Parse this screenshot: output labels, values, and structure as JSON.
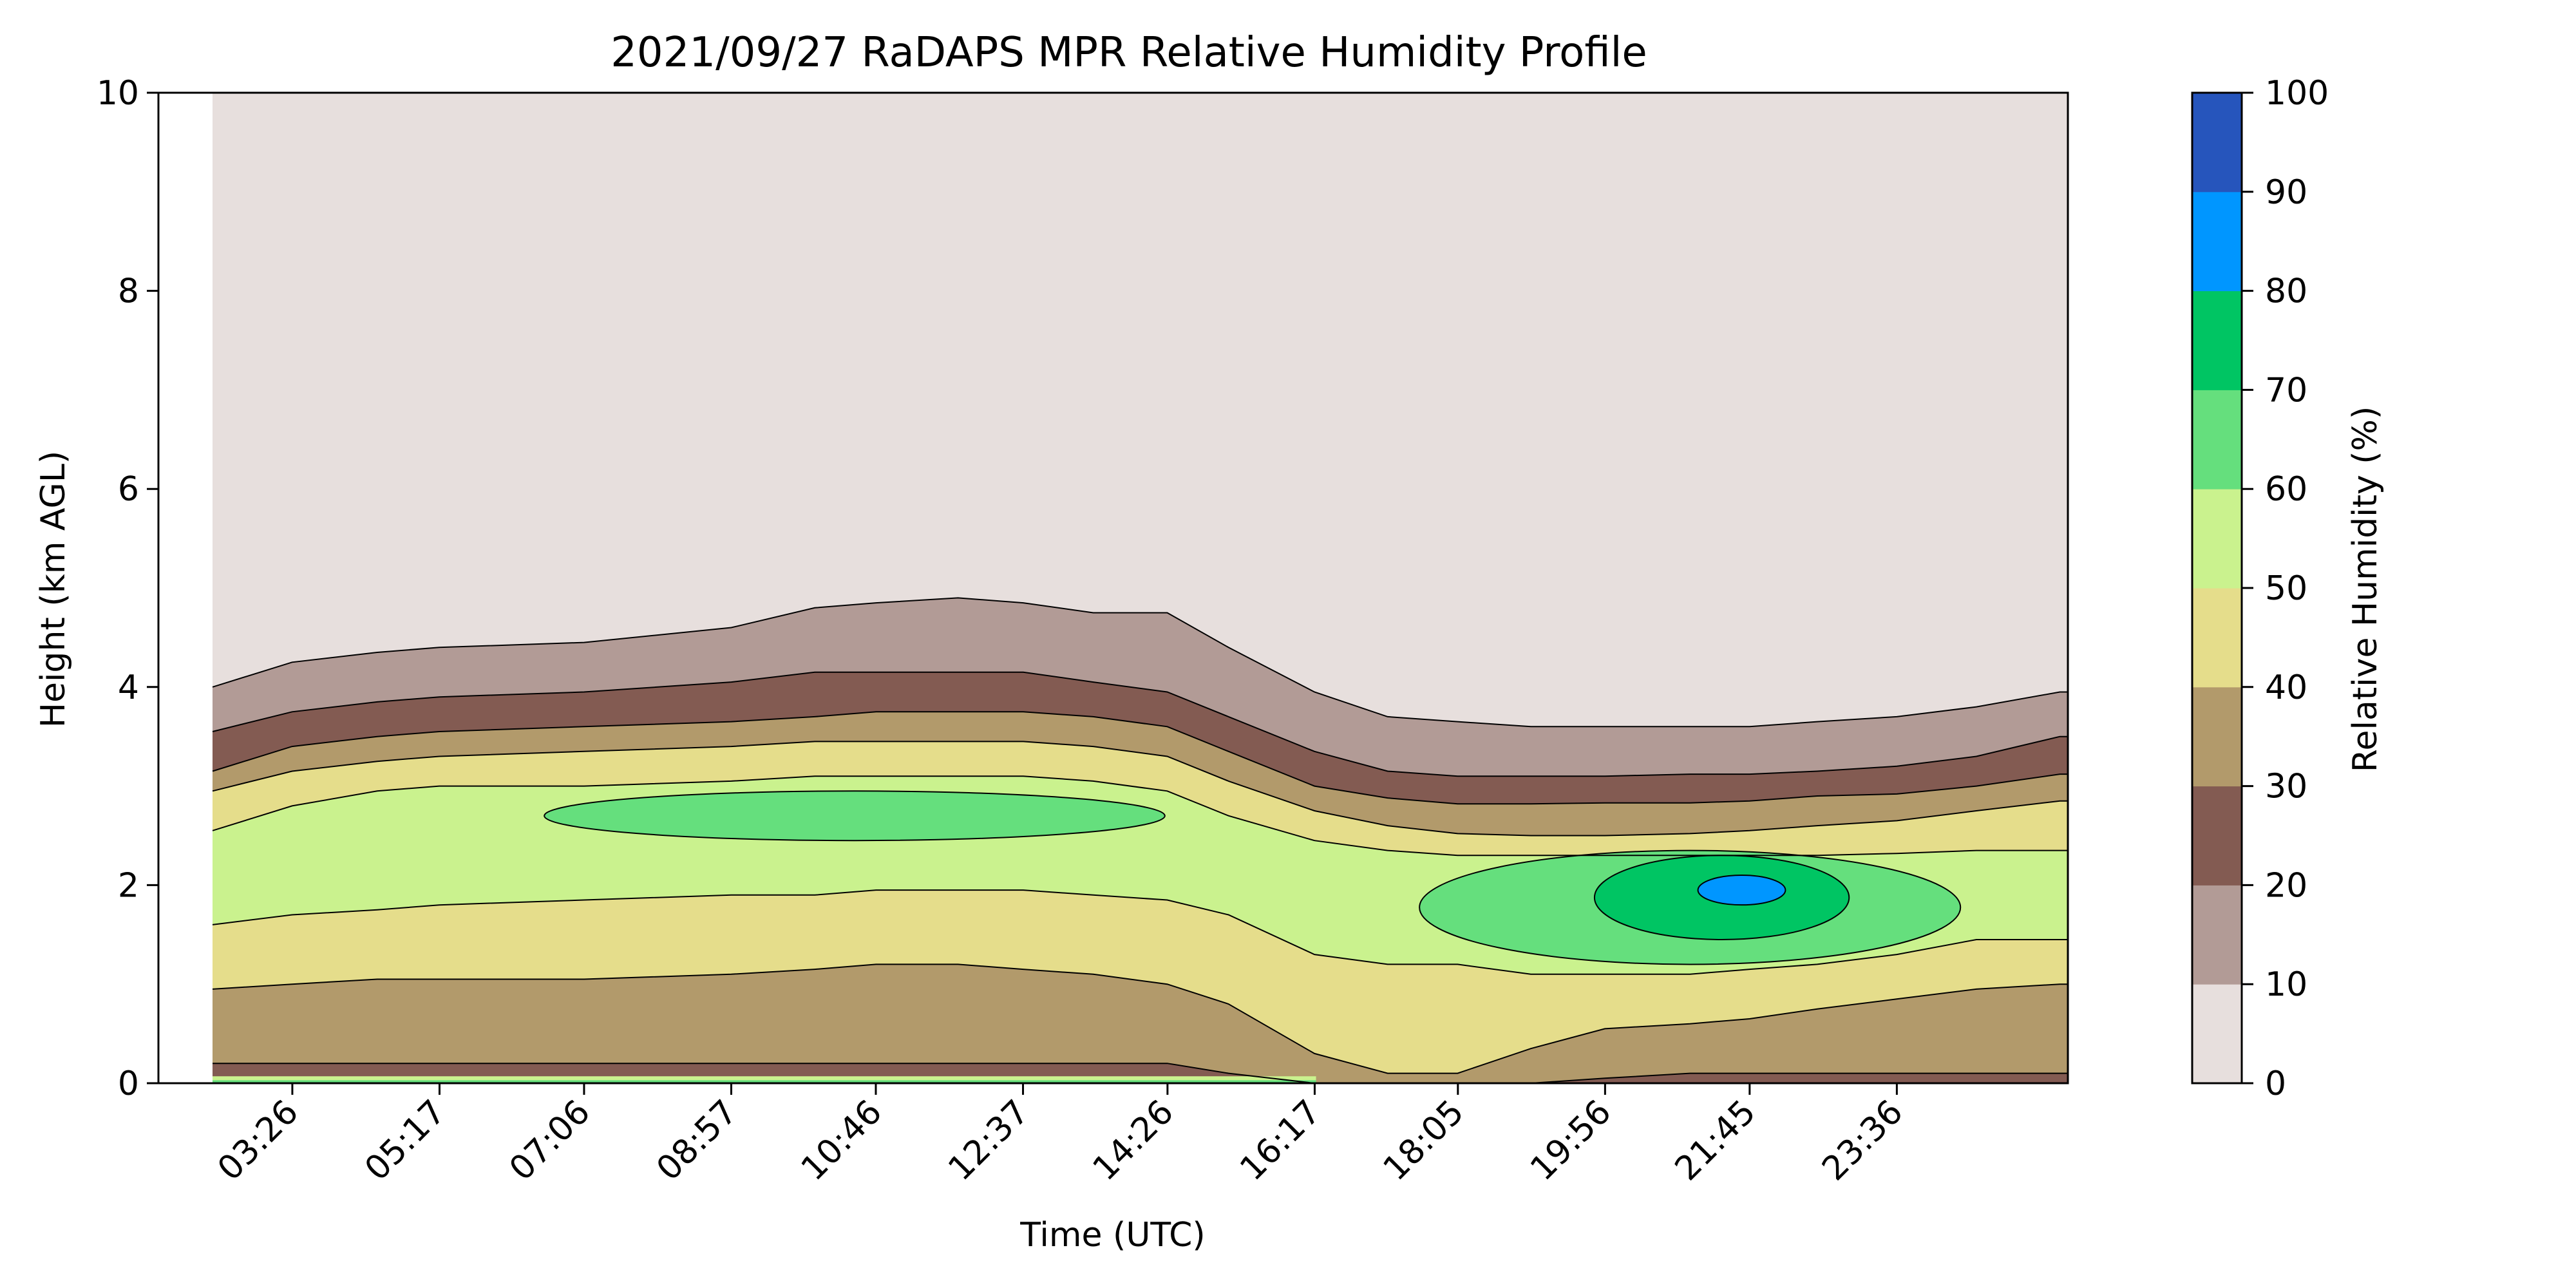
{
  "chart_data": {
    "type": "heatmap",
    "subtype": "filled contour",
    "title": "2021/09/27 RaDAPS MPR Relative Humidity Profile",
    "xlabel": "Time (UTC)",
    "ylabel": "Height (km AGL)",
    "colorbar_label": "Relative Humidity (%)",
    "x_ticks": [
      "03:26",
      "05:17",
      "07:06",
      "08:57",
      "10:46",
      "12:37",
      "14:26",
      "16:17",
      "18:05",
      "19:56",
      "21:45",
      "23:36"
    ],
    "x_range_hours": [
      1.75,
      25.75
    ],
    "x_tick_hours": [
      3.433,
      5.283,
      7.1,
      8.95,
      10.767,
      12.617,
      14.433,
      16.283,
      18.083,
      19.933,
      21.75,
      23.6
    ],
    "data_start_hour": 2.43,
    "ylim": [
      0,
      10
    ],
    "y_ticks": [
      0,
      2,
      4,
      6,
      8,
      10
    ],
    "levels": [
      0,
      10,
      20,
      30,
      40,
      50,
      60,
      70,
      80,
      90,
      100
    ],
    "colorbar_ticks": [
      "0",
      "10",
      "20",
      "30",
      "40",
      "50",
      "60",
      "70",
      "80",
      "90",
      "100"
    ],
    "level_colors": [
      "#e7dfdd",
      "#b29b96",
      "#835b52",
      "#b29a6b",
      "#e5dd8b",
      "#caf28e",
      "#65df7d",
      "#00c563",
      "#0096ff",
      "#2655bc"
    ],
    "boundaries_x_hours": [
      2.43,
      3.43,
      4.5,
      5.28,
      7.1,
      8.95,
      10.0,
      10.77,
      11.8,
      12.62,
      13.5,
      14.43,
      15.2,
      16.28,
      17.2,
      18.08,
      19.0,
      19.93,
      21.0,
      21.75,
      22.6,
      23.6,
      24.6,
      25.65
    ],
    "boundaries_height_km": [
      {
        "level": 10,
        "heights": [
          4.0,
          4.25,
          4.35,
          4.4,
          4.45,
          4.6,
          4.8,
          4.85,
          4.9,
          4.85,
          4.75,
          4.75,
          4.4,
          3.95,
          3.7,
          3.65,
          3.6,
          3.6,
          3.6,
          3.6,
          3.65,
          3.7,
          3.8,
          3.95
        ]
      },
      {
        "level": 20,
        "heights": [
          3.55,
          3.75,
          3.85,
          3.9,
          3.95,
          4.05,
          4.15,
          4.15,
          4.15,
          4.15,
          4.05,
          3.95,
          3.7,
          3.35,
          3.15,
          3.1,
          3.1,
          3.1,
          3.12,
          3.12,
          3.15,
          3.2,
          3.3,
          3.5
        ]
      },
      {
        "level": 30,
        "heights": [
          3.15,
          3.4,
          3.5,
          3.55,
          3.6,
          3.65,
          3.7,
          3.75,
          3.75,
          3.75,
          3.7,
          3.6,
          3.35,
          3.0,
          2.88,
          2.82,
          2.82,
          2.83,
          2.83,
          2.85,
          2.9,
          2.92,
          3.0,
          3.12
        ]
      },
      {
        "level": 40,
        "heights": [
          2.95,
          3.15,
          3.25,
          3.3,
          3.35,
          3.4,
          3.45,
          3.45,
          3.45,
          3.45,
          3.4,
          3.3,
          3.05,
          2.75,
          2.6,
          2.52,
          2.5,
          2.5,
          2.52,
          2.55,
          2.6,
          2.65,
          2.75,
          2.85
        ]
      },
      {
        "level": 50,
        "heights": [
          2.55,
          2.8,
          2.95,
          3.0,
          3.0,
          3.05,
          3.1,
          3.1,
          3.1,
          3.1,
          3.05,
          2.95,
          2.7,
          2.45,
          2.35,
          2.3,
          2.3,
          2.3,
          2.3,
          2.3,
          2.3,
          2.32,
          2.35,
          2.35
        ]
      },
      {
        "level": 50,
        "side": "lower",
        "heights": [
          1.6,
          1.7,
          1.75,
          1.8,
          1.85,
          1.9,
          1.9,
          1.95,
          1.95,
          1.95,
          1.9,
          1.85,
          1.7,
          1.3,
          1.2,
          1.2,
          1.1,
          1.1,
          1.1,
          1.15,
          1.2,
          1.3,
          1.45,
          1.45
        ]
      },
      {
        "level": 40,
        "side": "lower",
        "heights": [
          0.95,
          1.0,
          1.05,
          1.05,
          1.05,
          1.1,
          1.15,
          1.2,
          1.2,
          1.15,
          1.1,
          1.0,
          0.8,
          0.3,
          0.1,
          0.1,
          0.35,
          0.55,
          0.6,
          0.65,
          0.75,
          0.85,
          0.95,
          1.0
        ]
      },
      {
        "level": 30,
        "side": "lower",
        "heights": [
          0.2,
          0.2,
          0.2,
          0.2,
          0.2,
          0.2,
          0.2,
          0.2,
          0.2,
          0.2,
          0.2,
          0.2,
          0.1,
          0.0,
          0.0,
          0.0,
          0.0,
          0.05,
          0.1,
          0.1,
          0.1,
          0.1,
          0.1,
          0.1
        ]
      }
    ],
    "moist_regions": [
      {
        "level": 60,
        "x_hours": [
          6.6,
          14.4
        ],
        "height_km": [
          2.45,
          2.95
        ]
      },
      {
        "level": 60,
        "x_hours": [
          17.6,
          24.4
        ],
        "height_km": [
          1.2,
          2.35
        ]
      },
      {
        "level": 70,
        "x_hours": [
          19.8,
          23.0
        ],
        "height_km": [
          1.45,
          2.3
        ]
      },
      {
        "level": 80,
        "x_hours": [
          21.1,
          22.2
        ],
        "height_km": [
          1.8,
          2.1
        ]
      }
    ]
  }
}
